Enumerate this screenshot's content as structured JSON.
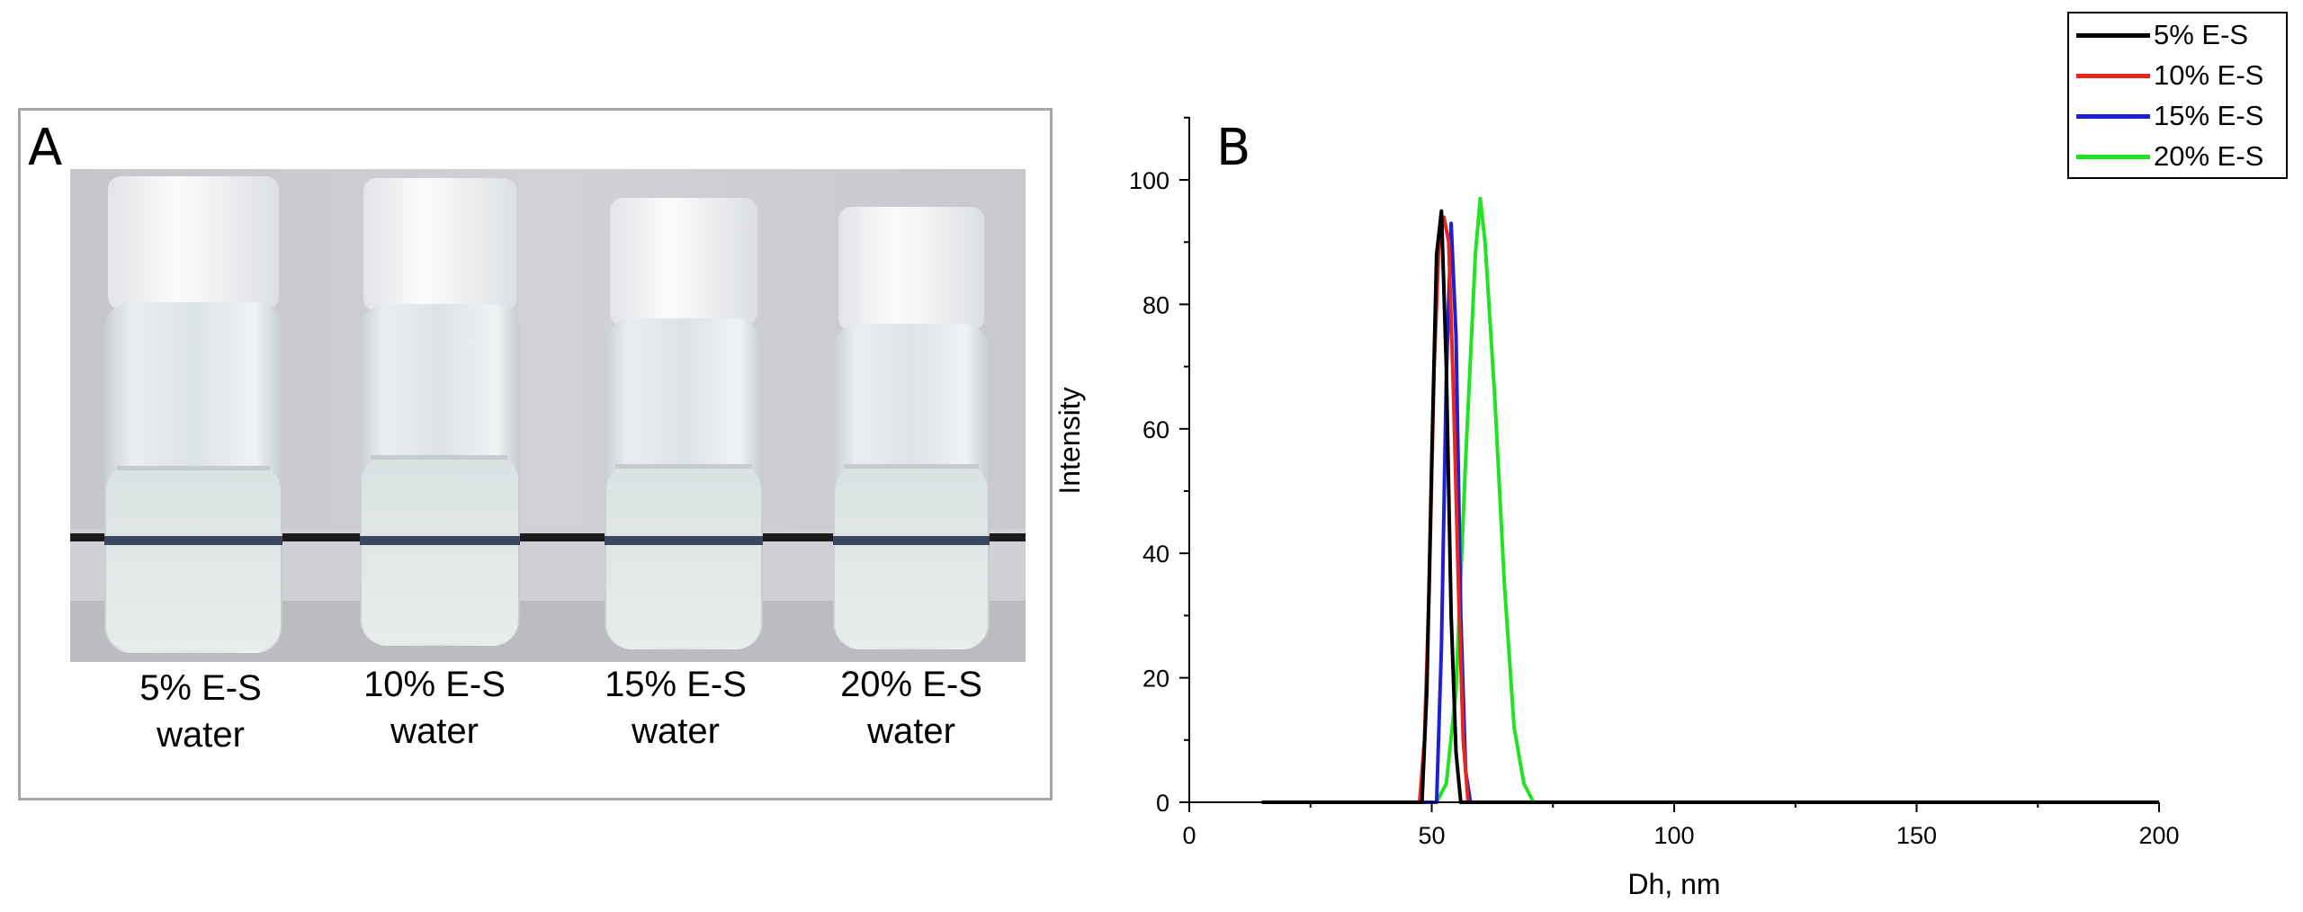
{
  "panel_a": {
    "letter": "A",
    "vials": [
      {
        "line1": "5% E-S",
        "line2": "water"
      },
      {
        "line1": "10% E-S",
        "line2": "water"
      },
      {
        "line1": "15% E-S",
        "line2": "water"
      },
      {
        "line1": "20% E-S",
        "line2": "water"
      }
    ]
  },
  "panel_b": {
    "letter": "B"
  },
  "chart_data": {
    "type": "line",
    "title": "",
    "xlabel": "Dh, nm",
    "ylabel": "Intensity",
    "xlim": [
      0,
      200
    ],
    "ylim": [
      0,
      110
    ],
    "xticks": [
      0,
      50,
      100,
      150,
      200
    ],
    "yticks": [
      0,
      20,
      40,
      60,
      80,
      100
    ],
    "x_tick_labels": [
      "0",
      "50",
      "100",
      "150",
      "200"
    ],
    "y_tick_labels": [
      "0",
      "20",
      "40",
      "60",
      "80",
      "100"
    ],
    "grid": false,
    "legend_position": "top-right",
    "series": [
      {
        "name": "5% E-S",
        "color": "#000000",
        "x": [
          15,
          48,
          49,
          50,
          51,
          52,
          53,
          54,
          55,
          56,
          200
        ],
        "y": [
          0,
          0,
          18,
          55,
          88,
          95,
          70,
          30,
          8,
          0,
          0
        ]
      },
      {
        "name": "10% E-S",
        "color": "#e8261e",
        "x": [
          15,
          47.5,
          48.5,
          49.5,
          50.5,
          51.5,
          52.5,
          53.5,
          54.5,
          55.5,
          56.5,
          57.5,
          200
        ],
        "y": [
          0,
          0,
          10,
          35,
          70,
          90,
          94,
          90,
          65,
          35,
          10,
          0,
          0
        ]
      },
      {
        "name": "15% E-S",
        "color": "#1f1fd6",
        "x": [
          15,
          51,
          52,
          53,
          54,
          55,
          56,
          57,
          58,
          200
        ],
        "y": [
          0,
          0,
          25,
          68,
          93,
          75,
          30,
          5,
          0,
          0
        ]
      },
      {
        "name": "20% E-S",
        "color": "#22e322",
        "x": [
          15,
          51,
          53,
          55,
          57,
          59,
          60,
          61,
          63,
          65,
          67,
          69,
          71,
          200
        ],
        "y": [
          0,
          0,
          3,
          18,
          55,
          88,
          97,
          90,
          65,
          35,
          12,
          3,
          0,
          0
        ]
      }
    ]
  }
}
